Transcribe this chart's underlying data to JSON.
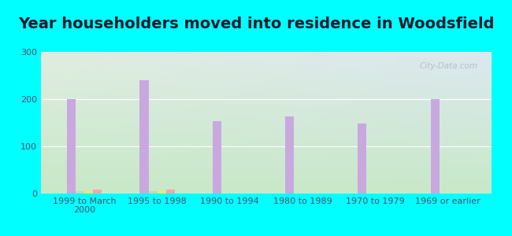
{
  "title": "Year householders moved into residence in Woodsfield",
  "categories": [
    "1999 to March\n2000",
    "1995 to 1998",
    "1990 to 1994",
    "1980 to 1989",
    "1970 to 1979",
    "1969 or earlier"
  ],
  "series": {
    "White Non-Hispanic": [
      200,
      240,
      153,
      163,
      148,
      200
    ],
    "Asian": [
      5,
      5,
      0,
      0,
      0,
      0
    ],
    "Other Race": [
      5,
      5,
      0,
      0,
      0,
      0
    ],
    "Hispanic or Latino": [
      8,
      8,
      0,
      0,
      0,
      0
    ]
  },
  "colors": {
    "White Non-Hispanic": "#c9a8e0",
    "Asian": "#c8d8b0",
    "Other Race": "#f0e868",
    "Hispanic or Latino": "#f0a8a8"
  },
  "bar_width": 0.12,
  "ylim": [
    0,
    300
  ],
  "yticks": [
    0,
    100,
    200,
    300
  ],
  "background_color": "#00ffff",
  "plot_bg_color_topleft": "#e0ede0",
  "plot_bg_color_topright": "#dce8f0",
  "plot_bg_color_bottom": "#c8e8c8",
  "watermark": "City-Data.com",
  "title_fontsize": 14,
  "tick_fontsize": 8,
  "legend_fontsize": 8.5,
  "grid_color": "#ffffff",
  "tick_color": "#505070",
  "title_color": "#1a1a2e"
}
